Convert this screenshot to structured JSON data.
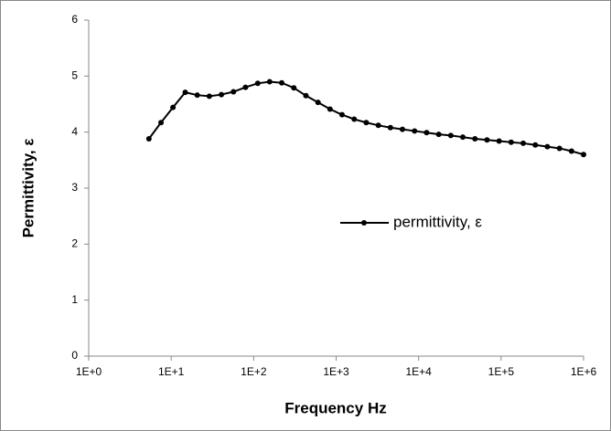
{
  "chart_data": {
    "type": "line",
    "x_label": "Frequency Hz",
    "y_label": "Permittivity, ε",
    "x_log": true,
    "grid": false,
    "legend": "center-right",
    "x": [
      5.37,
      7.52,
      10.5,
      14.8,
      20.7,
      29.0,
      40.6,
      56.9,
      79.6,
      112,
      156,
      219,
      307,
      430,
      603,
      843,
      1180,
      1656,
      2317,
      3251,
      4550,
      6368,
      8933,
      12500,
      17540,
      24550,
      34360,
      48190,
      67450,
      94620,
      132400,
      185400,
      260000,
      363900,
      510500,
      714500,
      1000000
    ],
    "series": [
      {
        "name": "permittivity, ε",
        "color": "#000000",
        "values": [
          3.88,
          4.17,
          4.44,
          4.71,
          4.66,
          4.64,
          4.67,
          4.72,
          4.8,
          4.87,
          4.9,
          4.88,
          4.79,
          4.65,
          4.53,
          4.41,
          4.31,
          4.23,
          4.17,
          4.12,
          4.08,
          4.05,
          4.02,
          3.99,
          3.96,
          3.94,
          3.91,
          3.88,
          3.86,
          3.84,
          3.82,
          3.8,
          3.77,
          3.74,
          3.71,
          3.66,
          3.6
        ]
      }
    ],
    "xlim": [
      1,
      1000000
    ],
    "xticks": [
      {
        "value": 1,
        "label": "1E+0"
      },
      {
        "value": 10,
        "label": "1E+1"
      },
      {
        "value": 100,
        "label": "1E+2"
      },
      {
        "value": 1000,
        "label": "1E+3"
      },
      {
        "value": 10000,
        "label": "1E+4"
      },
      {
        "value": 100000,
        "label": "1E+5"
      },
      {
        "value": 1000000,
        "label": "1E+6"
      }
    ],
    "ylim": [
      0,
      6
    ],
    "yticks": [
      0,
      1,
      2,
      3,
      4,
      5,
      6
    ]
  }
}
